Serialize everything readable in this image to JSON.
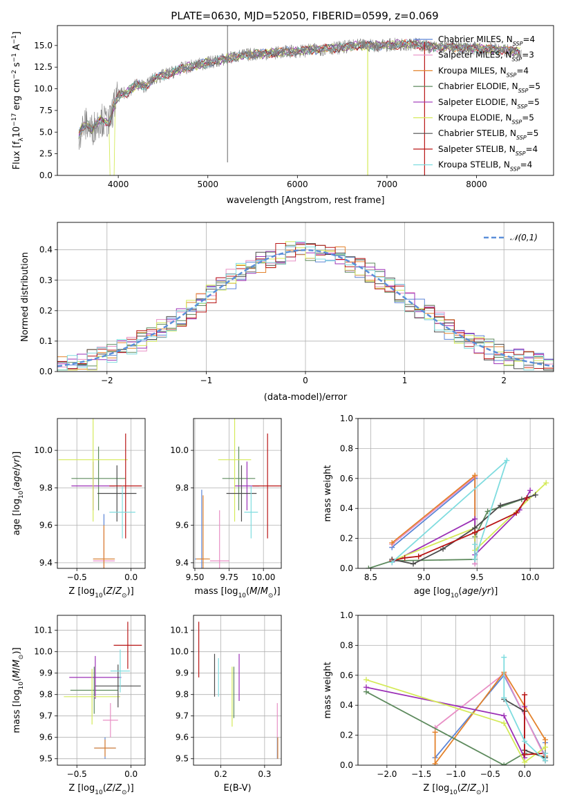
{
  "figure": {
    "title": "PLATE=0630, MJD=52050, FIBERID=0599, z=0.069"
  },
  "series_colors": {
    "Chabrier MILES": "#5b84d6",
    "Salpeter MILES": "#e88fc5",
    "Kroupa MILES": "#e3822b",
    "Chabrier ELODIE": "#5d8a5d",
    "Salpeter ELODIE": "#9b2fb6",
    "Kroupa ELODIE": "#d4ea58",
    "Chabrier STELIB": "#4a4a4a",
    "Salpeter STELIB": "#b81414",
    "Kroupa STELIB": "#7fdcdf",
    "data": "#7f7f7f",
    "normal": "#5b8fd9"
  },
  "chart_data": [
    {
      "id": "spectrum",
      "type": "line",
      "xlabel": "wavelength [Angstrom, rest frame]",
      "ylabel": "Flux [f_λ 10^-17 erg cm^-2 s^-1 A^-1]",
      "xticks": [
        "4000",
        "5000",
        "6000",
        "7000",
        "8000"
      ],
      "yticks": [
        "0.0",
        "2.5",
        "5.0",
        "7.5",
        "10.0",
        "12.5",
        "15.0"
      ],
      "xlim": [
        3320,
        8860
      ],
      "ylim": [
        0,
        17.3
      ],
      "grid": false,
      "legend_position": "right",
      "legend": [
        {
          "label": "Chabrier MILES",
          "nssp": "4"
        },
        {
          "label": "Salpeter MILES",
          "nssp": "3"
        },
        {
          "label": "Kroupa MILES",
          "nssp": "4"
        },
        {
          "label": "Chabrier ELODIE",
          "nssp": "5"
        },
        {
          "label": "Salpeter ELODIE",
          "nssp": "5"
        },
        {
          "label": "Kroupa ELODIE",
          "nssp": "5"
        },
        {
          "label": "Chabrier STELIB",
          "nssp": "5"
        },
        {
          "label": "Salpeter STELIB",
          "nssp": "4"
        },
        {
          "label": "Kroupa STELIB",
          "nssp": "4"
        }
      ],
      "data_envelope": {
        "x": [
          3560,
          3600,
          3650,
          3700,
          3800,
          3900,
          3950,
          4000,
          4100,
          4200,
          4300,
          4400,
          4500,
          4700,
          4900,
          5100,
          5300,
          5500,
          5700,
          5900,
          6100,
          6300,
          6500,
          6700,
          6900,
          7100,
          7300,
          7500,
          7700,
          7900,
          8100,
          8300,
          8500
        ],
        "y": [
          4.8,
          5.5,
          6.0,
          5.2,
          6.5,
          6.0,
          8.0,
          9.2,
          9.6,
          10.5,
          10.3,
          11.2,
          11.5,
          12.3,
          12.8,
          13.2,
          13.7,
          14.0,
          14.1,
          14.3,
          14.4,
          14.6,
          14.8,
          15.0,
          15.0,
          15.1,
          15.2,
          14.8,
          14.8,
          14.7,
          14.6,
          14.5,
          14.2
        ]
      }
    },
    {
      "id": "residuals",
      "type": "line",
      "xlabel": "(data-model)/error",
      "ylabel": "Normed distribution",
      "xticks": [
        "−2",
        "−1",
        "0",
        "1",
        "2"
      ],
      "yticks": [
        "0.0",
        "0.1",
        "0.2",
        "0.3",
        "0.4"
      ],
      "xlim": [
        -2.5,
        2.5
      ],
      "ylim": [
        0,
        0.49
      ],
      "grid": true,
      "legend_position": "upper right",
      "legend": [
        "𝒩(0,1)"
      ],
      "bin_width": 0.1,
      "bin_start": -2.5
    },
    {
      "id": "age-vs-Z",
      "type": "scatter",
      "xlabel": "Z [log10(Z/Z⊙)]",
      "ylabel": "age  [log10(age/yr)]",
      "xticks": [
        "−0.5",
        "0.0"
      ],
      "yticks": [
        "9.4",
        "9.6",
        "9.8",
        "10.0"
      ],
      "xlim": [
        -0.68,
        0.13
      ],
      "ylim": [
        9.37,
        10.17
      ],
      "grid": true,
      "points": [
        {
          "series": "Chabrier MILES",
          "x": -0.25,
          "y": 9.42,
          "xerr": 0.1,
          "yerr": 0.24
        },
        {
          "series": "Salpeter MILES",
          "x": -0.25,
          "y": 9.41,
          "xerr": 0.1,
          "yerr": 0.17
        },
        {
          "series": "Kroupa MILES",
          "x": -0.25,
          "y": 9.42,
          "xerr": 0.1,
          "yerr": 0.18
        },
        {
          "series": "Chabrier ELODIE",
          "x": -0.3,
          "y": 9.85,
          "xerr": 0.25,
          "yerr": 0.17
        },
        {
          "series": "Salpeter ELODIE",
          "x": -0.35,
          "y": 9.81,
          "xerr": 0.2,
          "yerr": 0.13
        },
        {
          "series": "Kroupa ELODIE",
          "x": -0.35,
          "y": 9.95,
          "xerr": 0.32,
          "yerr": 0.33
        },
        {
          "series": "Chabrier STELIB",
          "x": -0.13,
          "y": 9.77,
          "xerr": 0.18,
          "yerr": 0.15
        },
        {
          "series": "Salpeter STELIB",
          "x": -0.05,
          "y": 9.81,
          "xerr": 0.15,
          "yerr": 0.28
        },
        {
          "series": "Kroupa STELIB",
          "x": -0.08,
          "y": 9.67,
          "xerr": 0.12,
          "yerr": 0.14
        }
      ]
    },
    {
      "id": "age-vs-mass",
      "type": "scatter",
      "xlabel": "mass [log10(M/M⊙)]",
      "ylabel": "",
      "xticks": [
        "9.50",
        "9.75",
        "10.00"
      ],
      "yticks": [
        "9.4",
        "9.6",
        "9.8",
        "10.0"
      ],
      "xlim": [
        9.49,
        10.13
      ],
      "ylim": [
        9.37,
        10.17
      ],
      "grid": true,
      "points": [
        {
          "series": "Chabrier MILES",
          "x": 9.55,
          "y": 9.42,
          "xerr": 0.05,
          "yerr": 0.37
        },
        {
          "series": "Salpeter MILES",
          "x": 9.68,
          "y": 9.41,
          "xerr": 0.07,
          "yerr": 0.27
        },
        {
          "series": "Kroupa MILES",
          "x": 9.56,
          "y": 9.42,
          "xerr": 0.05,
          "yerr": 0.34
        },
        {
          "series": "Chabrier ELODIE",
          "x": 9.82,
          "y": 9.85,
          "xerr": 0.12,
          "yerr": 0.17
        },
        {
          "series": "Salpeter ELODIE",
          "x": 9.88,
          "y": 9.81,
          "xerr": 0.09,
          "yerr": 0.13
        },
        {
          "series": "Kroupa ELODIE",
          "x": 9.79,
          "y": 9.95,
          "xerr": 0.12,
          "yerr": 0.33
        },
        {
          "series": "Chabrier STELIB",
          "x": 9.84,
          "y": 9.77,
          "xerr": 0.11,
          "yerr": 0.15
        },
        {
          "series": "Salpeter STELIB",
          "x": 10.03,
          "y": 9.81,
          "xerr": 0.11,
          "yerr": 0.28
        },
        {
          "series": "Kroupa STELIB",
          "x": 9.91,
          "y": 9.67,
          "xerr": 0.05,
          "yerr": 0.14
        }
      ]
    },
    {
      "id": "weight-vs-age",
      "type": "line",
      "xlabel": "age  [log10(age/yr)]",
      "ylabel": "mass weight",
      "xticks": [
        "8.5",
        "9.0",
        "9.5",
        "10.0"
      ],
      "yticks": [
        "0.0",
        "0.2",
        "0.4",
        "0.6",
        "0.8",
        "1.0"
      ],
      "xlim": [
        8.38,
        10.22
      ],
      "ylim": [
        0,
        1.0
      ],
      "grid": true,
      "series": [
        {
          "name": "Chabrier MILES",
          "x": [
            8.7,
            9.48,
            9.48,
            9.48
          ],
          "y": [
            0.14,
            0.6,
            0.03,
            0.6
          ]
        },
        {
          "name": "Salpeter MILES",
          "x": [
            8.7,
            9.48,
            9.48
          ],
          "y": [
            0.16,
            0.61,
            0.03
          ]
        },
        {
          "name": "Kroupa MILES",
          "x": [
            8.7,
            9.48,
            9.48,
            9.48
          ],
          "y": [
            0.17,
            0.62,
            0.06,
            0.62
          ]
        },
        {
          "name": "Chabrier ELODIE",
          "x": [
            8.48,
            8.7,
            9.48,
            9.48,
            9.6,
            9.92
          ],
          "y": [
            0.0,
            0.05,
            0.06,
            0.21,
            0.38,
            0.46
          ]
        },
        {
          "name": "Salpeter ELODIE",
          "x": [
            8.7,
            9.48,
            9.48,
            9.9,
            10.0
          ],
          "y": [
            0.04,
            0.33,
            0.09,
            0.39,
            0.52
          ]
        },
        {
          "name": "Kroupa ELODIE",
          "x": [
            8.7,
            9.48,
            9.48,
            10.15
          ],
          "y": [
            0.05,
            0.27,
            0.12,
            0.57
          ]
        },
        {
          "name": "Chabrier STELIB",
          "x": [
            8.7,
            8.9,
            9.18,
            9.48,
            9.72,
            10.05
          ],
          "y": [
            0.06,
            0.03,
            0.13,
            0.27,
            0.42,
            0.49
          ]
        },
        {
          "name": "Salpeter STELIB",
          "x": [
            8.7,
            8.82,
            8.95,
            9.48,
            9.87,
            9.97
          ],
          "y": [
            0.05,
            0.07,
            0.08,
            0.24,
            0.37,
            0.47
          ]
        },
        {
          "name": "Kroupa STELIB",
          "x": [
            8.7,
            9.78,
            9.48,
            9.48
          ],
          "y": [
            0.04,
            0.72,
            0.06,
            0.16
          ]
        }
      ]
    },
    {
      "id": "mass-vs-Z",
      "type": "scatter",
      "xlabel": "Z [log10(Z/Z⊙)]",
      "ylabel": "mass [log10(M/M⊙)]",
      "xticks": [
        "−0.5",
        "0.0"
      ],
      "yticks": [
        "9.5",
        "9.6",
        "9.7",
        "9.8",
        "9.9",
        "10.0",
        "10.1"
      ],
      "xlim": [
        -0.68,
        0.13
      ],
      "ylim": [
        9.47,
        10.17
      ],
      "grid": true,
      "points": [
        {
          "series": "Chabrier MILES",
          "x": -0.24,
          "y": 9.55,
          "xerr": 0.1,
          "yerr": 0.05
        },
        {
          "series": "Salpeter MILES",
          "x": -0.19,
          "y": 9.68,
          "xerr": 0.07,
          "yerr": 0.08
        },
        {
          "series": "Kroupa MILES",
          "x": -0.24,
          "y": 9.55,
          "xerr": 0.1,
          "yerr": 0.04
        },
        {
          "series": "Chabrier ELODIE",
          "x": -0.34,
          "y": 9.82,
          "xerr": 0.22,
          "yerr": 0.11
        },
        {
          "series": "Salpeter ELODIE",
          "x": -0.33,
          "y": 9.88,
          "xerr": 0.24,
          "yerr": 0.1
        },
        {
          "series": "Kroupa ELODIE",
          "x": -0.36,
          "y": 9.79,
          "xerr": 0.26,
          "yerr": 0.13
        },
        {
          "series": "Chabrier STELIB",
          "x": -0.12,
          "y": 9.84,
          "xerr": 0.21,
          "yerr": 0.1
        },
        {
          "series": "Salpeter STELIB",
          "x": -0.03,
          "y": 10.03,
          "xerr": 0.13,
          "yerr": 0.11
        },
        {
          "series": "Kroupa STELIB",
          "x": -0.1,
          "y": 9.91,
          "xerr": 0.09,
          "yerr": 0.1
        }
      ]
    },
    {
      "id": "mass-vs-ebv",
      "type": "scatter",
      "xlabel": "E(B-V)",
      "ylabel": "",
      "xticks": [
        "0.2",
        "0.3"
      ],
      "yticks": [
        "9.5",
        "9.6",
        "9.7",
        "9.8",
        "9.9",
        "10.0",
        "10.1"
      ],
      "xlim": [
        0.138,
        0.338
      ],
      "ylim": [
        9.47,
        10.17
      ],
      "grid": true,
      "points": [
        {
          "series": "Chabrier MILES",
          "x": 0.329,
          "y": 9.55,
          "yerr": 0.05
        },
        {
          "series": "Salpeter MILES",
          "x": 0.329,
          "y": 9.68,
          "yerr": 0.08
        },
        {
          "series": "Kroupa MILES",
          "x": 0.33,
          "y": 9.55,
          "yerr": 0.05
        },
        {
          "series": "Chabrier ELODIE",
          "x": 0.23,
          "y": 9.81,
          "yerr": 0.12
        },
        {
          "series": "Salpeter ELODIE",
          "x": 0.242,
          "y": 9.88,
          "yerr": 0.11
        },
        {
          "series": "Kroupa ELODIE",
          "x": 0.226,
          "y": 9.79,
          "yerr": 0.14
        },
        {
          "series": "Chabrier STELIB",
          "x": 0.186,
          "y": 9.89,
          "yerr": 0.1
        },
        {
          "series": "Salpeter STELIB",
          "x": 0.15,
          "y": 10.01,
          "yerr": 0.13
        },
        {
          "series": "Kroupa STELIB",
          "x": 0.195,
          "y": 9.88,
          "yerr": 0.09
        }
      ]
    },
    {
      "id": "weight-vs-Z",
      "type": "line",
      "xlabel": "Z [log10(Z/Z⊙)]",
      "ylabel": "mass weight",
      "xticks": [
        "−2.0",
        "−1.5",
        "−1.0",
        "−0.5",
        "0.0"
      ],
      "yticks": [
        "0.0",
        "0.2",
        "0.4",
        "0.6",
        "0.8",
        "1.0"
      ],
      "xlim": [
        -2.42,
        0.42
      ],
      "ylim": [
        0,
        1.0
      ],
      "grid": true,
      "series": [
        {
          "name": "Chabrier MILES",
          "x": [
            -1.3,
            -0.3,
            0.3,
            0.3
          ],
          "y": [
            0.05,
            0.6,
            0.06,
            0.15
          ]
        },
        {
          "name": "Salpeter MILES",
          "x": [
            -1.3,
            -0.3,
            0.3
          ],
          "y": [
            0.25,
            0.61,
            0.05
          ]
        },
        {
          "name": "Kroupa MILES",
          "x": [
            -1.3,
            -1.3,
            -0.3,
            0.3,
            0.3
          ],
          "y": [
            0.22,
            0.01,
            0.62,
            0.17,
            0.06
          ]
        },
        {
          "name": "Chabrier ELODIE",
          "x": [
            -2.3,
            -0.3,
            0.0
          ],
          "y": [
            0.49,
            0.0,
            0.08
          ]
        },
        {
          "name": "Salpeter ELODIE",
          "x": [
            -2.3,
            -0.3,
            0.0,
            0.0
          ],
          "y": [
            0.52,
            0.33,
            0.05,
            0.39
          ]
        },
        {
          "name": "Kroupa ELODIE",
          "x": [
            -2.3,
            -0.3,
            0.0,
            0.3
          ],
          "y": [
            0.57,
            0.28,
            0.02,
            0.12
          ]
        },
        {
          "name": "Chabrier STELIB",
          "x": [
            -0.3,
            0.0,
            0.0,
            0.3,
            0.3
          ],
          "y": [
            0.44,
            0.36,
            0.1,
            0.05,
            0.08
          ]
        },
        {
          "name": "Salpeter STELIB",
          "x": [
            0.0,
            0.0,
            0.3,
            0.3
          ],
          "y": [
            0.47,
            0.07,
            0.08,
            0.03
          ]
        },
        {
          "name": "Kroupa STELIB",
          "x": [
            -0.3,
            -0.3,
            0.0,
            0.3,
            0.3
          ],
          "y": [
            0.72,
            0.45,
            0.16,
            0.03,
            0.08
          ]
        }
      ]
    }
  ]
}
